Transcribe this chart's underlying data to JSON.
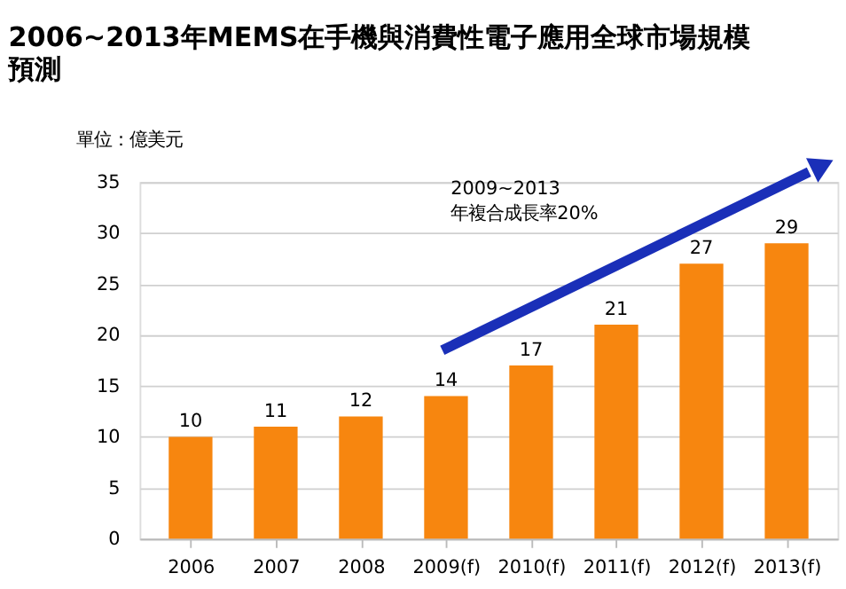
{
  "chart_data": {
    "type": "bar",
    "title": "2006~2013年MEMS在手機與消費性電子應用全球市場規模預測",
    "ylabel": "單位：億美元",
    "categories": [
      "2006",
      "2007",
      "2008",
      "2009(f)",
      "2010(f)",
      "2011(f)",
      "2012(f)",
      "2013(f)"
    ],
    "values": [
      10,
      11,
      12,
      14,
      17,
      21,
      27,
      29
    ],
    "color": "#f7860f",
    "ylim": [
      0,
      35
    ],
    "yticks": [
      0,
      5,
      10,
      15,
      20,
      25,
      30,
      35
    ],
    "grid": "y",
    "data_labels": true,
    "annotations": [
      "2009~2013",
      "年複合成長率20%"
    ]
  }
}
